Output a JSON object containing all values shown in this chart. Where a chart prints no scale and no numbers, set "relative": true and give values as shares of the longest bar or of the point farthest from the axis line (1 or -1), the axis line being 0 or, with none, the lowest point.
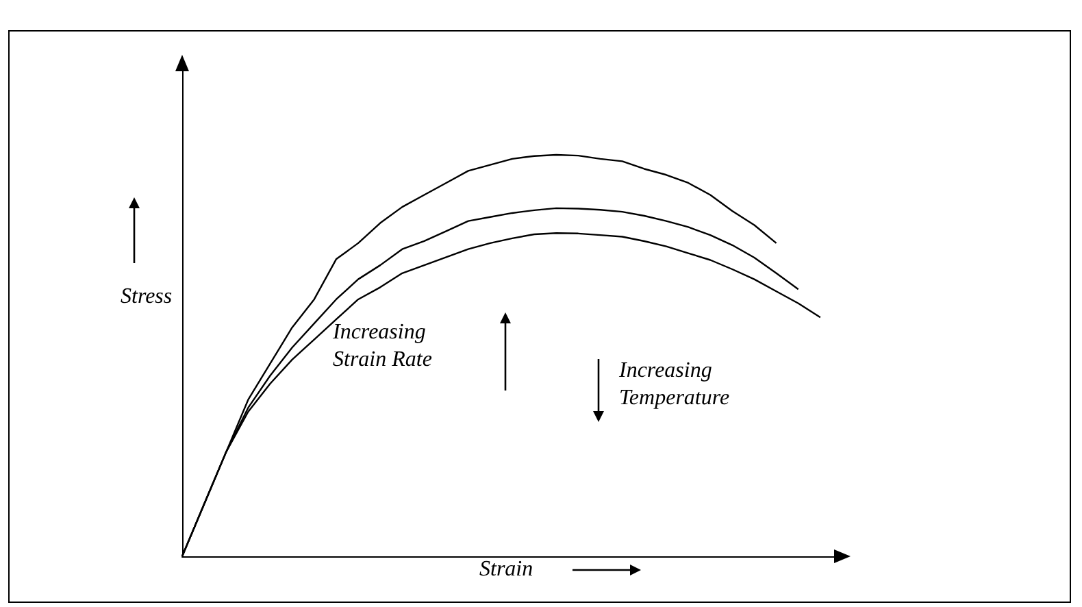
{
  "chart_data": {
    "type": "line",
    "relative": true,
    "xlabel": "Strain",
    "ylabel": "Stress",
    "tick_labels": false,
    "grid": false,
    "marker": "none",
    "line_style": "solid",
    "annotations": [
      "Increasing\nStrain Rate",
      "Increasing\nTemperature"
    ],
    "categories": [
      null,
      null,
      null,
      null,
      null,
      null,
      null,
      null,
      null,
      null,
      null,
      null,
      null,
      null,
      null,
      null,
      null,
      null,
      null,
      null,
      null,
      null,
      null,
      null,
      null,
      null,
      null,
      null,
      null,
      null,
      null
    ],
    "series": [
      {
        "color": "#000000",
        "values": [
          0,
          0.13,
          0.26,
          0.39,
          0.48,
          0.57,
          0.64,
          0.74,
          0.78,
          0.83,
          0.87,
          0.9,
          0.93,
          0.96,
          0.975,
          0.99,
          0.997,
          1,
          0.998,
          0.99,
          0.984,
          0.965,
          0.95,
          0.93,
          0.9,
          0.86,
          0.825,
          0.78,
          null,
          null,
          null
        ]
      },
      {
        "color": "#000000",
        "values": [
          0,
          0.13,
          0.26,
          0.37,
          0.45,
          0.52,
          0.58,
          0.64,
          0.69,
          0.725,
          0.765,
          0.785,
          0.81,
          0.835,
          0.845,
          0.855,
          0.862,
          0.867,
          0.866,
          0.863,
          0.858,
          0.848,
          0.835,
          0.82,
          0.8,
          0.775,
          0.744,
          0.705,
          0.665,
          null,
          null
        ]
      },
      {
        "color": "#000000",
        "values": [
          0,
          0.13,
          0.26,
          0.36,
          0.43,
          0.49,
          0.54,
          0.59,
          0.64,
          0.67,
          0.705,
          0.725,
          0.745,
          0.765,
          0.78,
          0.792,
          0.802,
          0.805,
          0.804,
          0.8,
          0.796,
          0.785,
          0.772,
          0.755,
          0.738,
          0.715,
          0.69,
          0.66,
          0.63,
          0.595,
          null
        ]
      }
    ]
  }
}
